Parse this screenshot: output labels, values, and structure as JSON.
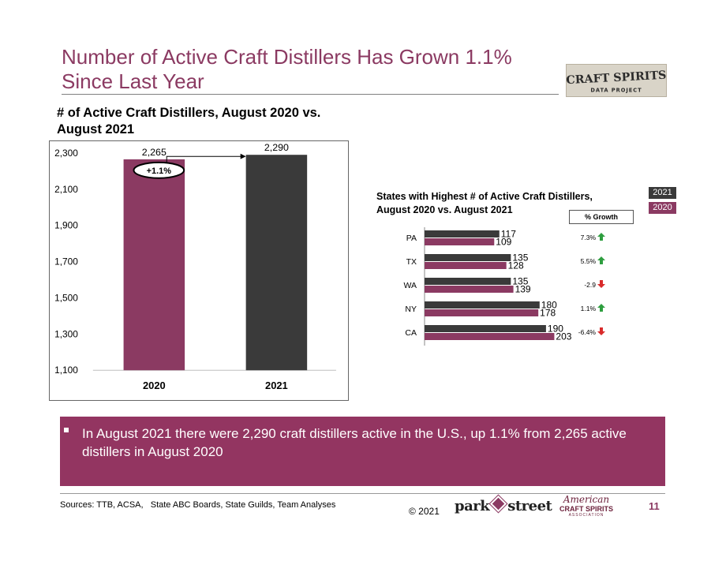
{
  "slide": {
    "title_line1": "Number of Active Craft Distillers Has Grown 1.1%",
    "title_line2": "Since Last Year",
    "logo_line1": "CRAFT SPIRITS",
    "logo_line2": "DATA PROJECT"
  },
  "main_heading_line1": "# of Active Craft Distillers, August 2020 vs.",
  "main_heading_line2": "August 2021",
  "states_heading_line1": "States with Highest # of Active Craft Distillers,",
  "states_heading_line2": "August 2020 vs. August 2021",
  "growth_header": "% Growth",
  "legend": {
    "y2021": "2021",
    "y2020": "2020"
  },
  "chart_data": [
    {
      "type": "bar",
      "title": "# of Active Craft Distillers, August 2020 vs. August 2021",
      "categories": [
        "2020",
        "2021"
      ],
      "values": [
        2265,
        2290
      ],
      "value_labels": [
        "2,265",
        "2,290"
      ],
      "ylim": [
        1100,
        2300
      ],
      "yticks": [
        "1,100",
        "1,300",
        "1,500",
        "1,700",
        "1,900",
        "2,100",
        "2,300"
      ],
      "annotation": "+1.1%",
      "colors": [
        "#8b3a62",
        "#3a3a3a"
      ]
    },
    {
      "type": "bar",
      "orientation": "horizontal",
      "title": "States with Highest # of Active Craft Distillers, August 2020 vs. August 2021",
      "categories": [
        "PA",
        "TX",
        "WA",
        "NY",
        "CA"
      ],
      "series": [
        {
          "name": "2021",
          "values": [
            117,
            135,
            135,
            180,
            190
          ],
          "color": "#3a3a3a"
        },
        {
          "name": "2020",
          "values": [
            109,
            128,
            139,
            178,
            203
          ],
          "color": "#8b3a62"
        }
      ],
      "growth_labels": [
        "7.3%",
        "5.5%",
        "-2.9",
        "1.1%",
        "-6.4%"
      ],
      "growth_direction": [
        "up",
        "up",
        "down",
        "up",
        "down"
      ],
      "up_color": "#2e9e3f",
      "down_color": "#d92b2b"
    }
  ],
  "bullet": "In August 2021 there were 2,290 craft distillers active in the U.S., up 1.1% from 2,265 active distillers in August 2020",
  "footer": {
    "sources": "Sources: TTB, ACSA,   State ABC Boards, State Guilds, Team Analyses",
    "copyright": "© 2021",
    "parkstreet_left": "park",
    "parkstreet_right": "street",
    "acsa_script": "American",
    "acsa_main": "CRAFT SPIRITS",
    "acsa_sub": "ASSOCIATION",
    "page_number": "11"
  }
}
